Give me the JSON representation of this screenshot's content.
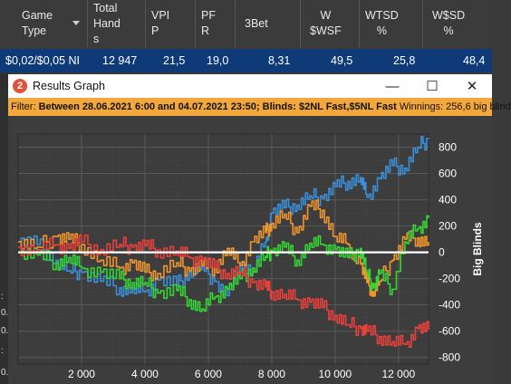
{
  "stats_table": {
    "columns": [
      {
        "label": "Game\nType"
      },
      {
        "label": "Total\nHand\ns"
      },
      {
        "label": "VPI\nP"
      },
      {
        "label": "PF\nR"
      },
      {
        "label": "3Bet"
      },
      {
        "label": "W\n$WSF"
      },
      {
        "label": "WTSD\n%"
      },
      {
        "label": "W$SD\n%"
      }
    ],
    "row": [
      "$0,02/$0,05 NI",
      "12 947",
      "21,5",
      "19,0",
      "8,31",
      "49,5",
      "25,8",
      "48,4"
    ]
  },
  "left_strip_chars": [
    ":",
    "0.",
    "0.",
    ":",
    "0."
  ],
  "window": {
    "title": "Results Graph",
    "minimize_glyph": "—",
    "maximize_glyph": "☐",
    "close_glyph": "✕",
    "filter": {
      "label": "Filter:",
      "date_range": "Between 28.06.2021 6:00 and 04.07.2021 23:50;",
      "blinds": "Blinds: $2NL Fast,$5NL Fast",
      "winnings": "Winnings: 256,6 big blind"
    }
  },
  "chart_data": {
    "type": "line",
    "title": "",
    "xlabel": "",
    "ylabel": "Big Blinds",
    "x_ticks": [
      2000,
      4000,
      6000,
      8000,
      10000,
      12000
    ],
    "x_tick_labels": [
      "2 000",
      "4 000",
      "6 000",
      "8 000",
      "10 000",
      "12 000"
    ],
    "y_ticks": [
      800,
      600,
      400,
      200,
      0,
      -200,
      -400,
      -600,
      -800
    ],
    "y_tick_labels": [
      "800",
      "600",
      "400",
      "200",
      "0",
      "-200",
      "-400",
      "-600",
      "-800"
    ],
    "xlim": [
      0,
      12947
    ],
    "ylim": [
      -850,
      900
    ],
    "grid": true,
    "legend": "none",
    "zero_line_color": "#ffffff",
    "series": [
      {
        "color": "#3a8fd8",
        "x": [
          0,
          600,
          1200,
          1600,
          2000,
          2600,
          3200,
          3600,
          4000,
          4400,
          5000,
          5400,
          5800,
          6200,
          6600,
          7000,
          7400,
          7800,
          8000,
          8400,
          8800,
          9200,
          9600,
          10000,
          10400,
          10800,
          11000,
          11400,
          11800,
          12200,
          12600,
          12947
        ],
        "y": [
          80,
          60,
          -60,
          -140,
          -150,
          -220,
          -270,
          -280,
          -300,
          -210,
          -250,
          -150,
          -110,
          -220,
          -330,
          -80,
          -150,
          80,
          300,
          340,
          360,
          430,
          410,
          500,
          540,
          570,
          420,
          560,
          660,
          640,
          800,
          860
        ]
      },
      {
        "color": "#f0942e",
        "x": [
          0,
          600,
          1200,
          1600,
          2000,
          2600,
          3200,
          3600,
          4000,
          4400,
          5000,
          5400,
          5800,
          6200,
          6600,
          7000,
          7400,
          7800,
          8000,
          8400,
          8800,
          9200,
          9600,
          10000,
          10400,
          10800,
          11000,
          11200,
          11400,
          11800,
          12200,
          12600,
          12947
        ],
        "y": [
          80,
          40,
          120,
          100,
          60,
          -60,
          -120,
          -80,
          -150,
          -160,
          -80,
          -140,
          -100,
          -120,
          30,
          -100,
          80,
          150,
          220,
          290,
          150,
          350,
          320,
          120,
          60,
          -90,
          -230,
          -300,
          -220,
          -60,
          100,
          110,
          80
        ]
      },
      {
        "color": "#34d632",
        "x": [
          0,
          600,
          1200,
          1600,
          2000,
          2600,
          3200,
          3600,
          4000,
          4400,
          5000,
          5400,
          5800,
          6200,
          6600,
          7000,
          7400,
          7800,
          8000,
          8400,
          8800,
          9200,
          9600,
          10000,
          10400,
          10800,
          11000,
          11200,
          11400,
          11800,
          12200,
          12600,
          12947
        ],
        "y": [
          0,
          -20,
          -80,
          -40,
          -120,
          -150,
          -200,
          -230,
          -230,
          -310,
          -290,
          -360,
          -430,
          -340,
          -280,
          -200,
          -120,
          -30,
          10,
          40,
          -60,
          70,
          60,
          20,
          -40,
          30,
          -150,
          -270,
          -160,
          -280,
          80,
          180,
          260
        ]
      },
      {
        "color": "#e8403a",
        "x": [
          0,
          600,
          1200,
          1600,
          2000,
          2600,
          3200,
          3600,
          4000,
          4400,
          5000,
          5400,
          5800,
          6200,
          6600,
          7000,
          7400,
          7800,
          8000,
          8400,
          8800,
          9200,
          9600,
          10000,
          10400,
          10800,
          11000,
          11400,
          11800,
          12200,
          12600,
          12947
        ],
        "y": [
          40,
          20,
          60,
          30,
          80,
          20,
          60,
          40,
          50,
          20,
          10,
          -40,
          -60,
          -120,
          -160,
          -150,
          -230,
          -260,
          -300,
          -320,
          -360,
          -380,
          -420,
          -480,
          -550,
          -580,
          -600,
          -640,
          -680,
          -700,
          -580,
          -590
        ]
      }
    ]
  }
}
